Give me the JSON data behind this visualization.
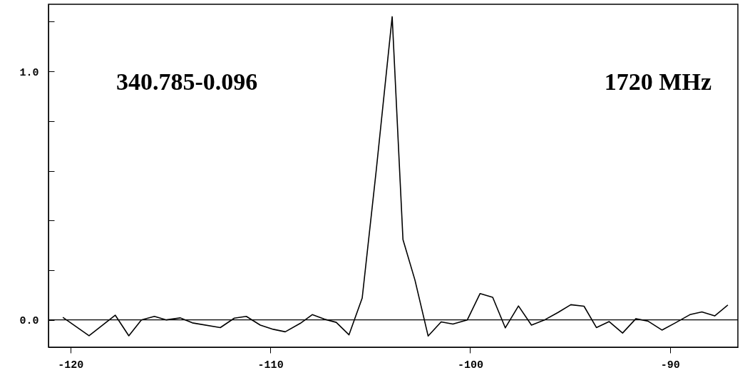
{
  "chart_data": {
    "type": "line",
    "annotations": [
      "340.785-0.096",
      "1720 MHz"
    ],
    "xlim": [
      -121.1,
      -86.6
    ],
    "xticks": [
      -120,
      -110,
      -100,
      -90
    ],
    "ylim": [
      -0.11,
      1.27
    ],
    "yticks": [
      {
        "value": 0,
        "label": "0.0"
      },
      {
        "value": 0.2,
        "label": null
      },
      {
        "value": 0.4,
        "label": null
      },
      {
        "value": 0.6,
        "label": null
      },
      {
        "value": 0.8,
        "label": null
      },
      {
        "value": 1,
        "label": "1.0"
      },
      {
        "value": 1.2,
        "label": null
      }
    ],
    "grid": false,
    "marker": "none",
    "line_style": "solid",
    "ref_lines": [
      {
        "axis": "y",
        "value": 0,
        "color": "#000000"
      }
    ],
    "series": [
      {
        "color": "#000000",
        "x": [
          -120.38,
          -119.07,
          -117.76,
          -117.08,
          -116.45,
          -115.8,
          -115.2,
          -114.5,
          -113.9,
          -112.5,
          -111.8,
          -111.2,
          -110.5,
          -109.85,
          -109.25,
          -108.5,
          -107.9,
          -107.3,
          -106.7,
          -106.06,
          -105.4,
          -104.7,
          -103.9,
          -103.36,
          -102.76,
          -102.1,
          -101.45,
          -100.86,
          -100.14,
          -99.5,
          -98.87,
          -98.24,
          -97.58,
          -96.93,
          -96.27,
          -95.6,
          -94.96,
          -94.3,
          -93.68,
          -93.04,
          -92.37,
          -91.7,
          -91.1,
          -90.4,
          -89.73,
          -89.0,
          -88.4,
          -87.76,
          -87.1
        ],
        "values": [
          0.01,
          -0.064,
          0.019,
          -0.064,
          0,
          0.014,
          0,
          0.008,
          -0.012,
          -0.031,
          0.007,
          0.014,
          -0.021,
          -0.038,
          -0.048,
          -0.014,
          0.021,
          0.003,
          -0.01,
          -0.06,
          0.088,
          0.6,
          1.22,
          0.323,
          0.16,
          -0.065,
          -0.008,
          -0.017,
          0,
          0.106,
          0.091,
          -0.032,
          0.056,
          -0.021,
          0,
          0.03,
          0.061,
          0.055,
          -0.031,
          -0.007,
          -0.053,
          0.005,
          -0.005,
          -0.041,
          -0.012,
          0.021,
          0.032,
          0.016,
          0.06
        ]
      }
    ]
  }
}
